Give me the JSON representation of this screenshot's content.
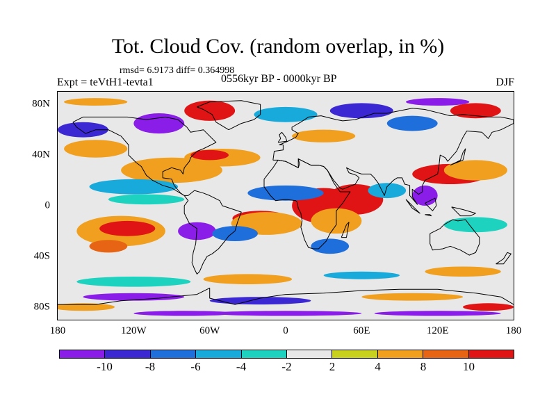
{
  "title": "Tot. Cloud Cov. (random overlap, in %)",
  "stats": "rmsd= 6.9173 diff= 0.364998",
  "left_label": "Expt = teVtH1-tevta1",
  "center_label": "0556kyr BP - 0000kyr BP",
  "right_label": "DJF",
  "map": {
    "projection": "cylindrical-equidistant",
    "lon_range": [
      -180,
      180
    ],
    "lat_range": [
      -90,
      90
    ],
    "y_ticks": [
      {
        "label": "80N",
        "lat": 80
      },
      {
        "label": "40N",
        "lat": 40
      },
      {
        "label": "0",
        "lat": 0
      },
      {
        "label": "40S",
        "lat": -40
      },
      {
        "label": "80S",
        "lat": -80
      }
    ],
    "x_ticks": [
      {
        "label": "180",
        "lon": -180
      },
      {
        "label": "120W",
        "lon": -120
      },
      {
        "label": "60W",
        "lon": -60
      },
      {
        "label": "0",
        "lon": 0
      },
      {
        "label": "60E",
        "lon": 60
      },
      {
        "label": "120E",
        "lon": 120
      },
      {
        "label": "180",
        "lon": 180
      }
    ]
  },
  "colorbar": {
    "levels": [
      "-10",
      "-8",
      "-6",
      "-4",
      "-2",
      "2",
      "4",
      "8",
      "10"
    ],
    "colors": [
      "#8a1ee8",
      "#3c28d2",
      "#1e6edc",
      "#19aadc",
      "#1ed2c0",
      "#e8e8e8",
      "#c8d21e",
      "#f0a01e",
      "#e66414",
      "#e01414"
    ]
  },
  "anomaly_patches": [
    {
      "lon": -130,
      "lat": -20,
      "rx": 35,
      "ry": 12,
      "color": "#f0a01e"
    },
    {
      "lon": -125,
      "lat": -18,
      "rx": 22,
      "ry": 6,
      "color": "#e01414"
    },
    {
      "lon": -140,
      "lat": -32,
      "rx": 15,
      "ry": 5,
      "color": "#e66414"
    },
    {
      "lon": -20,
      "lat": -10,
      "rx": 22,
      "ry": 6,
      "color": "#e01414"
    },
    {
      "lon": -15,
      "lat": -14,
      "rx": 28,
      "ry": 9,
      "color": "#f0a01e"
    },
    {
      "lon": 30,
      "lat": 0,
      "rx": 25,
      "ry": 14,
      "color": "#e01414"
    },
    {
      "lon": 55,
      "lat": 5,
      "rx": 22,
      "ry": 12,
      "color": "#e01414"
    },
    {
      "lon": 40,
      "lat": -12,
      "rx": 20,
      "ry": 10,
      "color": "#f0a01e"
    },
    {
      "lon": 130,
      "lat": 25,
      "rx": 30,
      "ry": 8,
      "color": "#e01414"
    },
    {
      "lon": 150,
      "lat": 28,
      "rx": 25,
      "ry": 8,
      "color": "#f0a01e"
    },
    {
      "lon": -90,
      "lat": 28,
      "rx": 40,
      "ry": 10,
      "color": "#f0a01e"
    },
    {
      "lon": -50,
      "lat": 38,
      "rx": 30,
      "ry": 7,
      "color": "#f0a01e"
    },
    {
      "lon": -60,
      "lat": 40,
      "rx": 15,
      "ry": 4,
      "color": "#e01414"
    },
    {
      "lon": -150,
      "lat": 45,
      "rx": 25,
      "ry": 7,
      "color": "#f0a01e"
    },
    {
      "lon": -70,
      "lat": -20,
      "rx": 15,
      "ry": 7,
      "color": "#8a1ee8"
    },
    {
      "lon": -40,
      "lat": -22,
      "rx": 18,
      "ry": 6,
      "color": "#1e6edc"
    },
    {
      "lon": 35,
      "lat": -32,
      "rx": 15,
      "ry": 6,
      "color": "#1e6edc"
    },
    {
      "lon": 110,
      "lat": 8,
      "rx": 10,
      "ry": 8,
      "color": "#8a1ee8"
    },
    {
      "lon": 80,
      "lat": 12,
      "rx": 15,
      "ry": 6,
      "color": "#19aadc"
    },
    {
      "lon": 0,
      "lat": 10,
      "rx": 30,
      "ry": 6,
      "color": "#1e6edc"
    },
    {
      "lon": -120,
      "lat": 15,
      "rx": 35,
      "ry": 6,
      "color": "#19aadc"
    },
    {
      "lon": -110,
      "lat": 5,
      "rx": 30,
      "ry": 4,
      "color": "#1ed2c0"
    },
    {
      "lon": 150,
      "lat": -15,
      "rx": 25,
      "ry": 6,
      "color": "#1ed2c0"
    },
    {
      "lon": -160,
      "lat": 60,
      "rx": 20,
      "ry": 6,
      "color": "#3c28d2"
    },
    {
      "lon": -100,
      "lat": 65,
      "rx": 20,
      "ry": 8,
      "color": "#8a1ee8"
    },
    {
      "lon": -60,
      "lat": 75,
      "rx": 20,
      "ry": 8,
      "color": "#e01414"
    },
    {
      "lon": 0,
      "lat": 72,
      "rx": 25,
      "ry": 6,
      "color": "#19aadc"
    },
    {
      "lon": 60,
      "lat": 75,
      "rx": 25,
      "ry": 6,
      "color": "#3c28d2"
    },
    {
      "lon": 100,
      "lat": 65,
      "rx": 20,
      "ry": 6,
      "color": "#1e6edc"
    },
    {
      "lon": 150,
      "lat": 75,
      "rx": 20,
      "ry": 6,
      "color": "#e01414"
    },
    {
      "lon": 30,
      "lat": 55,
      "rx": 25,
      "ry": 5,
      "color": "#f0a01e"
    },
    {
      "lon": -150,
      "lat": 82,
      "rx": 25,
      "ry": 3,
      "color": "#f0a01e"
    },
    {
      "lon": 120,
      "lat": 82,
      "rx": 25,
      "ry": 3,
      "color": "#8a1ee8"
    },
    {
      "lon": -120,
      "lat": -60,
      "rx": 45,
      "ry": 4,
      "color": "#1ed2c0"
    },
    {
      "lon": -30,
      "lat": -58,
      "rx": 35,
      "ry": 4,
      "color": "#f0a01e"
    },
    {
      "lon": 60,
      "lat": -55,
      "rx": 30,
      "ry": 3,
      "color": "#19aadc"
    },
    {
      "lon": 140,
      "lat": -52,
      "rx": 30,
      "ry": 4,
      "color": "#f0a01e"
    },
    {
      "lon": -120,
      "lat": -72,
      "rx": 40,
      "ry": 3,
      "color": "#8a1ee8"
    },
    {
      "lon": -20,
      "lat": -75,
      "rx": 40,
      "ry": 3,
      "color": "#3c28d2"
    },
    {
      "lon": 100,
      "lat": -72,
      "rx": 40,
      "ry": 3,
      "color": "#f0a01e"
    },
    {
      "lon": 160,
      "lat": -80,
      "rx": 20,
      "ry": 3,
      "color": "#e01414"
    },
    {
      "lon": -160,
      "lat": -80,
      "rx": 25,
      "ry": 3,
      "color": "#f0a01e"
    },
    {
      "lon": 0,
      "lat": -85,
      "rx": 60,
      "ry": 2,
      "color": "#8a1ee8"
    },
    {
      "lon": -80,
      "lat": -85,
      "rx": 40,
      "ry": 2,
      "color": "#8a1ee8"
    },
    {
      "lon": 120,
      "lat": -85,
      "rx": 50,
      "ry": 2,
      "color": "#8a1ee8"
    }
  ],
  "coastlines": [
    [
      [
        -168,
        66
      ],
      [
        -160,
        70
      ],
      [
        -140,
        70
      ],
      [
        -125,
        70
      ],
      [
        -110,
        68
      ],
      [
        -95,
        70
      ],
      [
        -85,
        68
      ],
      [
        -78,
        62
      ],
      [
        -75,
        58
      ],
      [
        -65,
        60
      ],
      [
        -60,
        55
      ],
      [
        -55,
        50
      ],
      [
        -65,
        45
      ],
      [
        -70,
        43
      ],
      [
        -75,
        38
      ],
      [
        -76,
        35
      ],
      [
        -80,
        30
      ],
      [
        -81,
        25
      ],
      [
        -83,
        28
      ],
      [
        -90,
        30
      ],
      [
        -97,
        27
      ],
      [
        -97,
        22
      ],
      [
        -90,
        21
      ],
      [
        -88,
        16
      ],
      [
        -83,
        10
      ],
      [
        -80,
        8
      ],
      [
        -85,
        11
      ],
      [
        -90,
        14
      ],
      [
        -97,
        16
      ],
      [
        -105,
        20
      ],
      [
        -110,
        24
      ],
      [
        -114,
        31
      ],
      [
        -118,
        34
      ],
      [
        -124,
        40
      ],
      [
        -124,
        48
      ],
      [
        -130,
        55
      ],
      [
        -140,
        60
      ],
      [
        -150,
        60
      ],
      [
        -158,
        57
      ],
      [
        -165,
        62
      ],
      [
        -168,
        66
      ]
    ],
    [
      [
        -80,
        8
      ],
      [
        -77,
        8
      ],
      [
        -72,
        12
      ],
      [
        -65,
        10
      ],
      [
        -60,
        8
      ],
      [
        -52,
        4
      ],
      [
        -50,
        0
      ],
      [
        -44,
        -2
      ],
      [
        -35,
        -5
      ],
      [
        -38,
        -13
      ],
      [
        -40,
        -20
      ],
      [
        -45,
        -24
      ],
      [
        -48,
        -28
      ],
      [
        -53,
        -34
      ],
      [
        -58,
        -38
      ],
      [
        -62,
        -40
      ],
      [
        -65,
        -45
      ],
      [
        -68,
        -52
      ],
      [
        -70,
        -54
      ],
      [
        -72,
        -50
      ],
      [
        -74,
        -45
      ],
      [
        -73,
        -37
      ],
      [
        -71,
        -30
      ],
      [
        -70,
        -18
      ],
      [
        -76,
        -14
      ],
      [
        -80,
        -6
      ],
      [
        -80,
        0
      ],
      [
        -77,
        4
      ],
      [
        -80,
        8
      ]
    ],
    [
      [
        -10,
        36
      ],
      [
        -9,
        43
      ],
      [
        -2,
        44
      ],
      [
        -2,
        48
      ],
      [
        -5,
        48
      ],
      [
        2,
        51
      ],
      [
        8,
        54
      ],
      [
        10,
        57
      ],
      [
        5,
        60
      ],
      [
        5,
        62
      ],
      [
        12,
        66
      ],
      [
        18,
        70
      ],
      [
        28,
        71
      ],
      [
        40,
        68
      ],
      [
        45,
        67
      ],
      [
        55,
        68
      ],
      [
        70,
        73
      ],
      [
        80,
        73
      ],
      [
        100,
        77
      ],
      [
        110,
        76
      ],
      [
        130,
        71
      ],
      [
        140,
        72
      ],
      [
        160,
        70
      ],
      [
        170,
        70
      ],
      [
        180,
        68
      ],
      [
        180,
        65
      ],
      [
        170,
        60
      ],
      [
        163,
        58
      ],
      [
        160,
        53
      ],
      [
        155,
        58
      ],
      [
        143,
        59
      ],
      [
        140,
        54
      ],
      [
        135,
        43
      ],
      [
        128,
        35
      ],
      [
        126,
        38
      ],
      [
        122,
        40
      ],
      [
        121,
        31
      ],
      [
        120,
        25
      ],
      [
        110,
        20
      ],
      [
        108,
        16
      ],
      [
        108,
        11
      ],
      [
        105,
        9
      ],
      [
        100,
        13
      ],
      [
        100,
        7
      ],
      [
        104,
        1
      ],
      [
        98,
        8
      ],
      [
        98,
        16
      ],
      [
        94,
        17
      ],
      [
        92,
        22
      ],
      [
        88,
        22
      ],
      [
        85,
        20
      ],
      [
        80,
        15
      ],
      [
        78,
        8
      ],
      [
        73,
        18
      ],
      [
        70,
        22
      ],
      [
        67,
        25
      ],
      [
        60,
        25
      ],
      [
        57,
        26
      ],
      [
        52,
        28
      ],
      [
        48,
        30
      ],
      [
        50,
        26
      ],
      [
        56,
        24
      ],
      [
        58,
        22
      ],
      [
        55,
        17
      ],
      [
        45,
        13
      ],
      [
        43,
        14
      ],
      [
        38,
        20
      ],
      [
        33,
        28
      ],
      [
        30,
        31
      ],
      [
        26,
        32
      ],
      [
        20,
        32
      ],
      [
        10,
        37
      ],
      [
        11,
        33
      ],
      [
        10,
        30
      ],
      [
        0,
        35
      ],
      [
        -6,
        36
      ],
      [
        -10,
        36
      ]
    ],
    [
      [
        -17,
        21
      ],
      [
        -17,
        15
      ],
      [
        -12,
        8
      ],
      [
        -8,
        4
      ],
      [
        0,
        5
      ],
      [
        8,
        4
      ],
      [
        9,
        3
      ],
      [
        10,
        -2
      ],
      [
        12,
        -6
      ],
      [
        13,
        -12
      ],
      [
        12,
        -17
      ],
      [
        15,
        -27
      ],
      [
        18,
        -33
      ],
      [
        22,
        -34
      ],
      [
        26,
        -34
      ],
      [
        32,
        -28
      ],
      [
        35,
        -22
      ],
      [
        40,
        -15
      ],
      [
        40,
        -10
      ],
      [
        40,
        -4
      ],
      [
        45,
        2
      ],
      [
        51,
        11
      ],
      [
        43,
        11
      ],
      [
        38,
        18
      ],
      [
        33,
        28
      ],
      [
        30,
        31
      ],
      [
        26,
        32
      ],
      [
        20,
        32
      ],
      [
        10,
        37
      ],
      [
        10,
        30
      ],
      [
        0,
        35
      ],
      [
        -6,
        36
      ],
      [
        -10,
        30
      ],
      [
        -17,
        21
      ]
    ],
    [
      [
        114,
        -22
      ],
      [
        114,
        -30
      ],
      [
        116,
        -35
      ],
      [
        124,
        -34
      ],
      [
        130,
        -32
      ],
      [
        138,
        -35
      ],
      [
        145,
        -39
      ],
      [
        150,
        -37
      ],
      [
        153,
        -30
      ],
      [
        153,
        -25
      ],
      [
        145,
        -15
      ],
      [
        142,
        -11
      ],
      [
        136,
        -12
      ],
      [
        132,
        -11
      ],
      [
        125,
        -15
      ],
      [
        122,
        -18
      ],
      [
        114,
        -22
      ]
    ],
    [
      [
        -45,
        60
      ],
      [
        -55,
        66
      ],
      [
        -58,
        72
      ],
      [
        -65,
        76
      ],
      [
        -70,
        78
      ],
      [
        -60,
        82
      ],
      [
        -35,
        83
      ],
      [
        -20,
        80
      ],
      [
        -20,
        72
      ],
      [
        -25,
        68
      ],
      [
        -35,
        65
      ],
      [
        -45,
        60
      ]
    ],
    [
      [
        44,
        -25
      ],
      [
        48,
        -15
      ],
      [
        50,
        -13
      ],
      [
        48,
        -25
      ],
      [
        44,
        -25
      ]
    ],
    [
      [
        130,
        32
      ],
      [
        135,
        34
      ],
      [
        140,
        36
      ],
      [
        141,
        40
      ],
      [
        142,
        45
      ],
      [
        140,
        42
      ],
      [
        138,
        36
      ],
      [
        132,
        33
      ],
      [
        130,
        32
      ]
    ],
    [
      [
        -6,
        50
      ],
      [
        -4,
        53
      ],
      [
        -5,
        56
      ],
      [
        -3,
        58
      ],
      [
        0,
        54
      ],
      [
        1,
        51
      ],
      [
        -6,
        50
      ]
    ],
    [
      [
        95,
        5
      ],
      [
        105,
        -5
      ],
      [
        106,
        -6
      ],
      [
        100,
        -2
      ],
      [
        95,
        5
      ]
    ],
    [
      [
        110,
        -7
      ],
      [
        115,
        -8
      ],
      [
        114,
        -7
      ],
      [
        110,
        -7
      ]
    ],
    [
      [
        110,
        2
      ],
      [
        118,
        6
      ],
      [
        119,
        0
      ],
      [
        116,
        -4
      ],
      [
        110,
        2
      ]
    ],
    [
      [
        131,
        -1
      ],
      [
        140,
        -3
      ],
      [
        150,
        -6
      ],
      [
        146,
        -8
      ],
      [
        138,
        -8
      ],
      [
        131,
        -1
      ]
    ],
    [
      [
        166,
        -46
      ],
      [
        172,
        -42
      ],
      [
        175,
        -37
      ],
      [
        178,
        -38
      ],
      [
        172,
        -46
      ],
      [
        166,
        -46
      ]
    ],
    [
      [
        -180,
        -78
      ],
      [
        -150,
        -78
      ],
      [
        -130,
        -75
      ],
      [
        -100,
        -73
      ],
      [
        -70,
        -70
      ],
      [
        -60,
        -65
      ],
      [
        -60,
        -73
      ],
      [
        -40,
        -78
      ],
      [
        -20,
        -73
      ],
      [
        0,
        -70
      ],
      [
        30,
        -69
      ],
      [
        60,
        -67
      ],
      [
        90,
        -66
      ],
      [
        120,
        -66
      ],
      [
        150,
        -69
      ],
      [
        170,
        -72
      ],
      [
        180,
        -78
      ]
    ]
  ]
}
